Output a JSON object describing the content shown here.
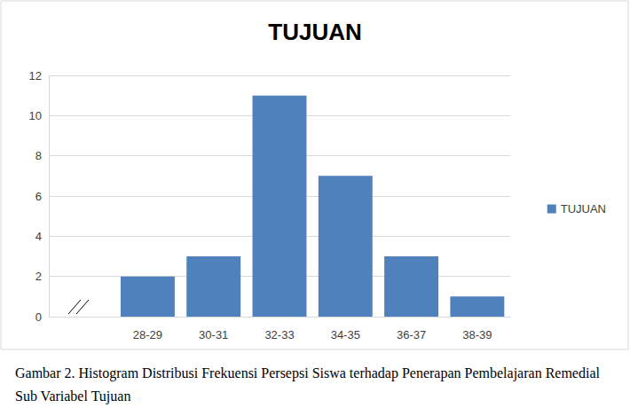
{
  "chart_data": {
    "type": "bar",
    "title": "TUJUAN",
    "caption": "Gambar 2. Histogram Distribusi Frekuensi Persepsi Siswa terhadap Penerapan Pembelajaran Remedial Sub Variabel Tujuan",
    "categories": [
      null,
      "28-29",
      "30-31",
      "32-33",
      "34-35",
      "36-37",
      "38-39"
    ],
    "series": [
      {
        "name": "TUJUAN",
        "color": "#4f81bd",
        "values": [
          null,
          2,
          3,
          11,
          7,
          3,
          1
        ]
      }
    ],
    "ylim": [
      0,
      12
    ],
    "yticks": [
      0,
      2,
      4,
      6,
      8,
      10,
      12
    ],
    "grid": true,
    "legend": "right"
  }
}
